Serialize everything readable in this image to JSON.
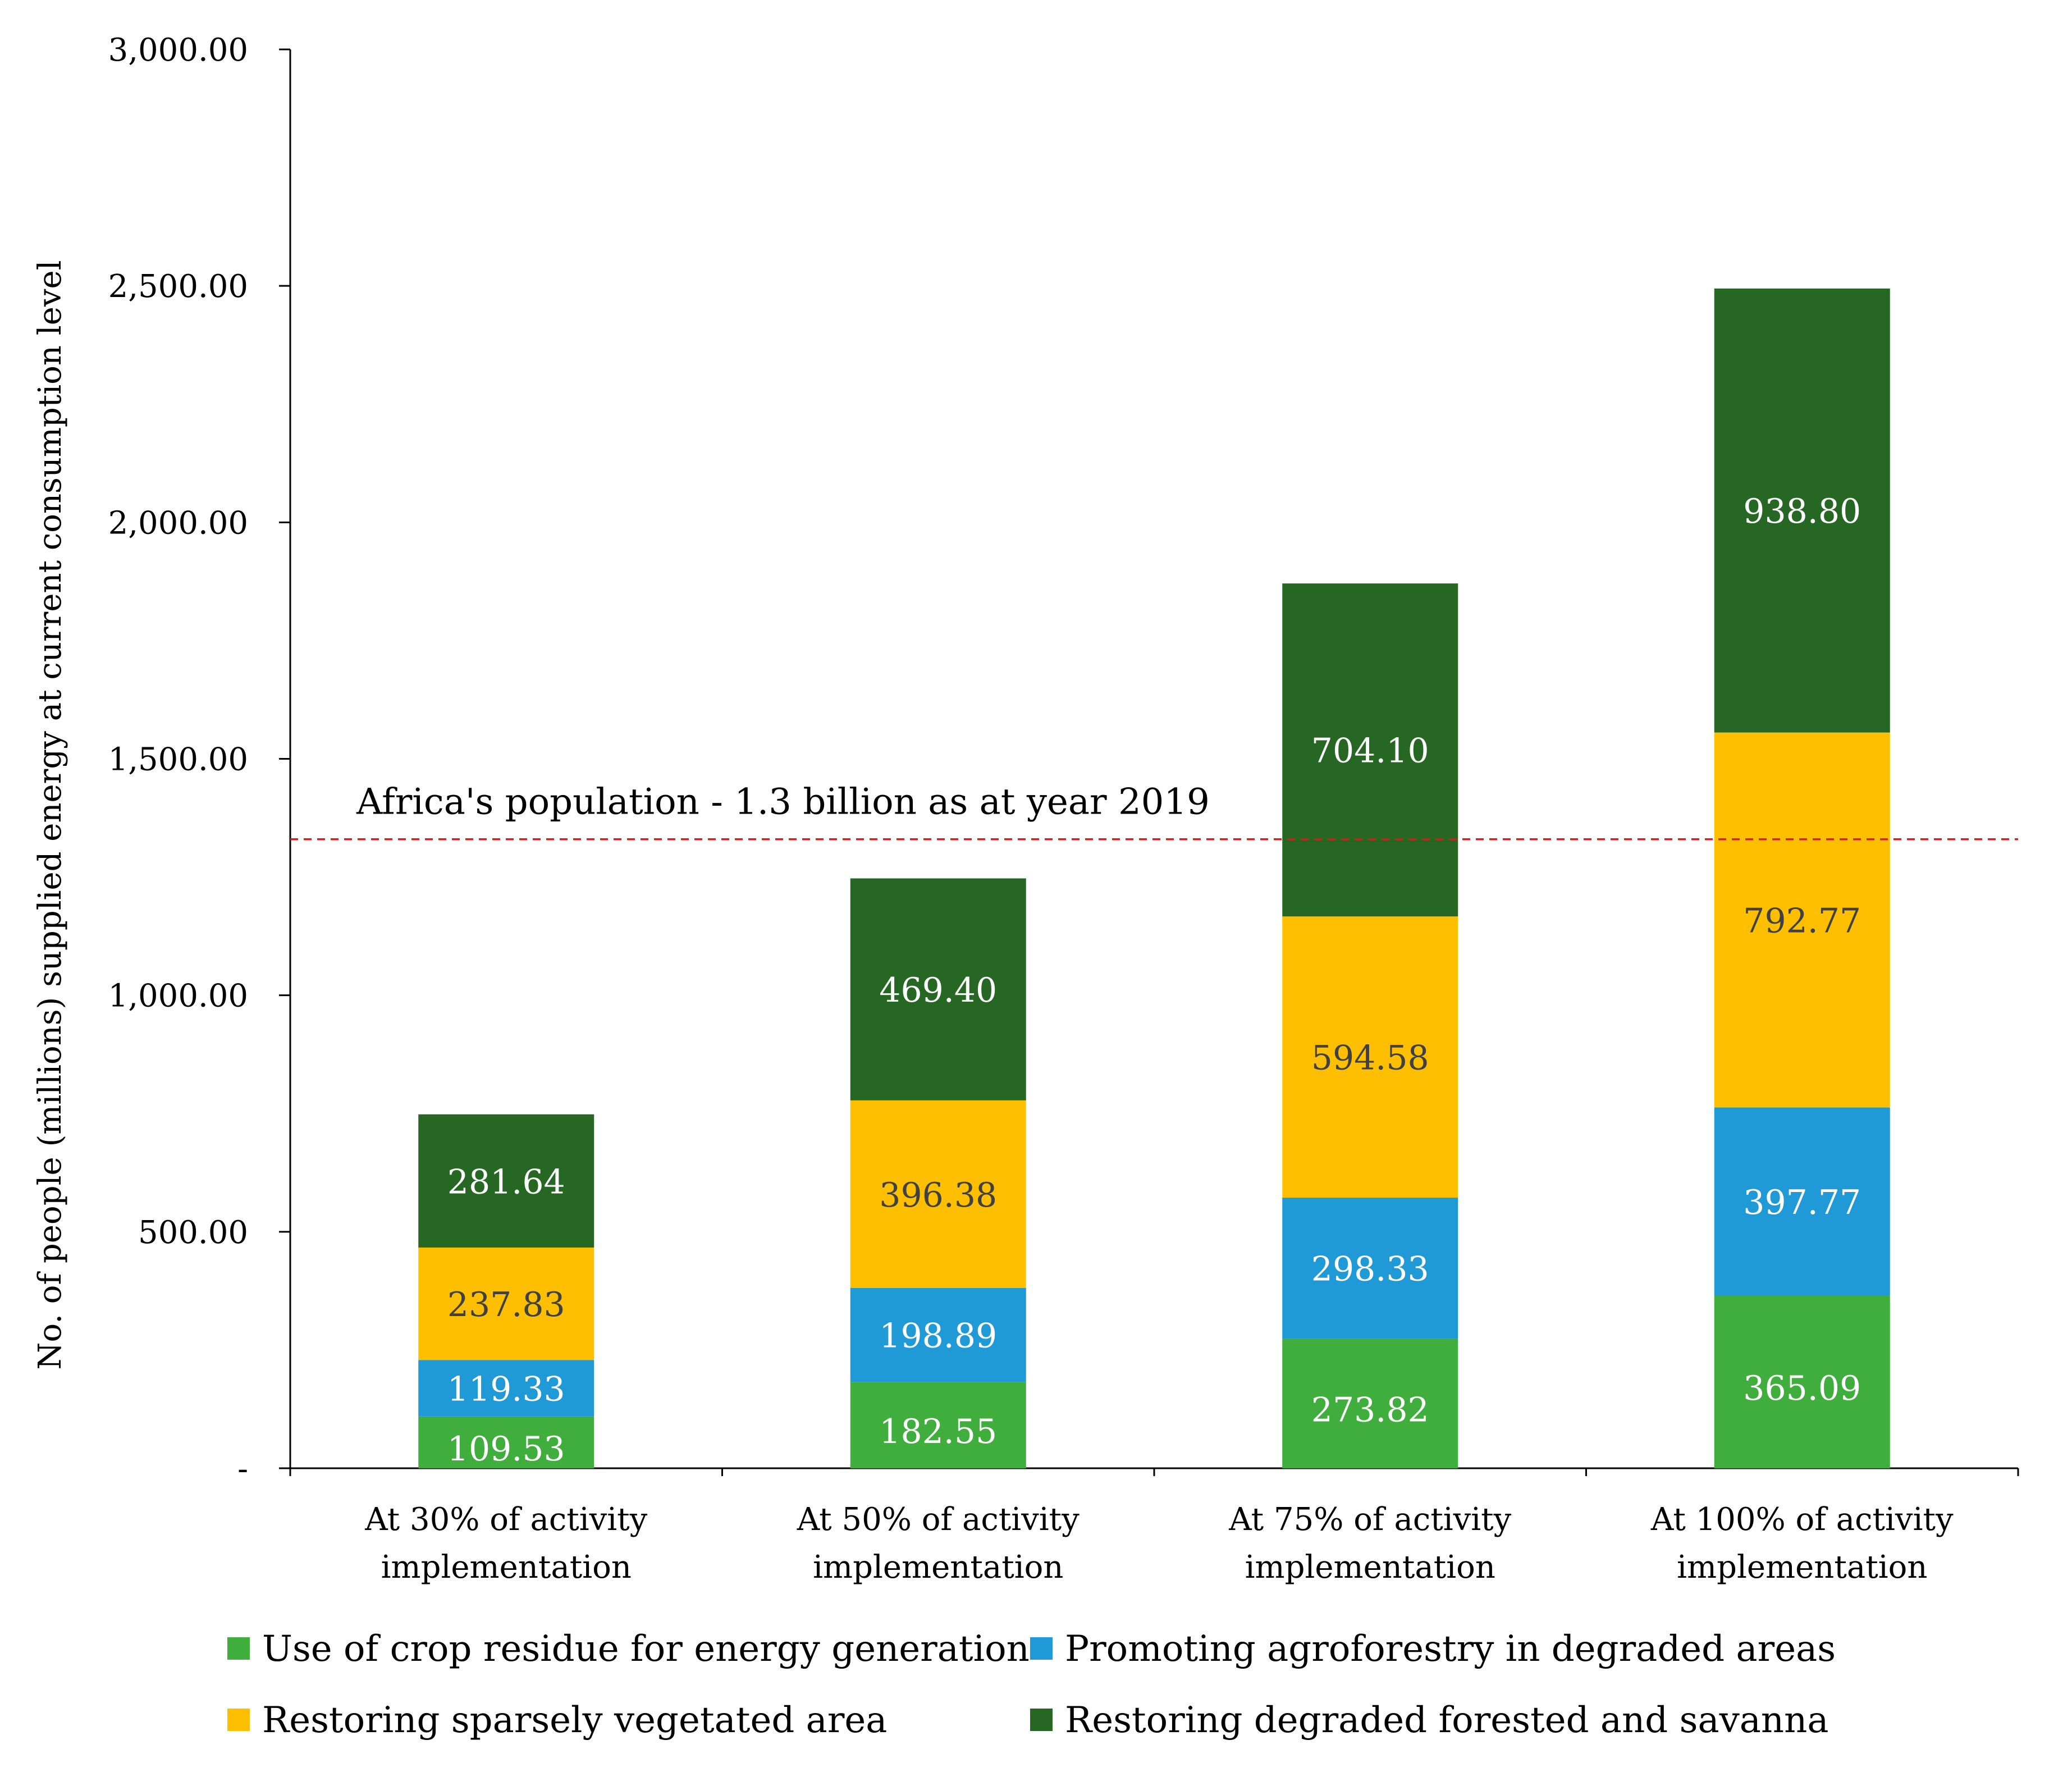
{
  "chart_data": {
    "type": "bar",
    "stacked": true,
    "title": "",
    "xlabel": "",
    "ylabel": "No. of people (millions) supplied energy at current consumption level",
    "ylim": [
      0,
      3000
    ],
    "y_ticks": [
      {
        "value": 0,
        "label": "-"
      },
      {
        "value": 500,
        "label": "500.00"
      },
      {
        "value": 1000,
        "label": "1,000.00"
      },
      {
        "value": 1500,
        "label": "1,500.00"
      },
      {
        "value": 2000,
        "label": "2,000.00"
      },
      {
        "value": 2500,
        "label": "2,500.00"
      },
      {
        "value": 3000,
        "label": "3,000.00"
      }
    ],
    "categories": [
      [
        "At 30% of activity",
        "implementation"
      ],
      [
        "At 50% of activity",
        "implementation"
      ],
      [
        "At 75% of activity",
        "implementation"
      ],
      [
        "At 100% of activity",
        "implementation"
      ]
    ],
    "series": [
      {
        "name": "Use of crop residue for energy generation",
        "color": "#3fae3c",
        "label_color": "#ffffff",
        "values": [
          109.53,
          182.55,
          273.82,
          365.09
        ],
        "labels": [
          "109.53",
          "182.55",
          "273.82",
          "365.09"
        ]
      },
      {
        "name": "Promoting agroforestry in degraded areas",
        "color": "#1f9ad6",
        "label_color": "#ffffff",
        "values": [
          119.33,
          198.89,
          298.33,
          397.77
        ],
        "labels": [
          "119.33",
          "198.89",
          "298.33",
          "397.77"
        ]
      },
      {
        "name": "Restoring sparsely vegetated area",
        "color": "#fdbf00",
        "label_color": "#404040",
        "values": [
          237.83,
          396.38,
          594.58,
          792.77
        ],
        "labels": [
          "237.83",
          "396.38",
          "594.58",
          "792.77"
        ]
      },
      {
        "name": "Restoring degraded forested and savanna",
        "color": "#266823",
        "label_color": "#ffffff",
        "values": [
          281.64,
          469.4,
          704.1,
          938.8
        ],
        "labels": [
          "281.64",
          "469.40",
          "704.10",
          "938.80"
        ]
      }
    ],
    "reference_line": {
      "value": 1330,
      "label": "Africa's population - 1.3 billion as at year 2019",
      "color": "#e2161d"
    },
    "legend": {
      "placement": "bottom",
      "columns": 2
    }
  }
}
